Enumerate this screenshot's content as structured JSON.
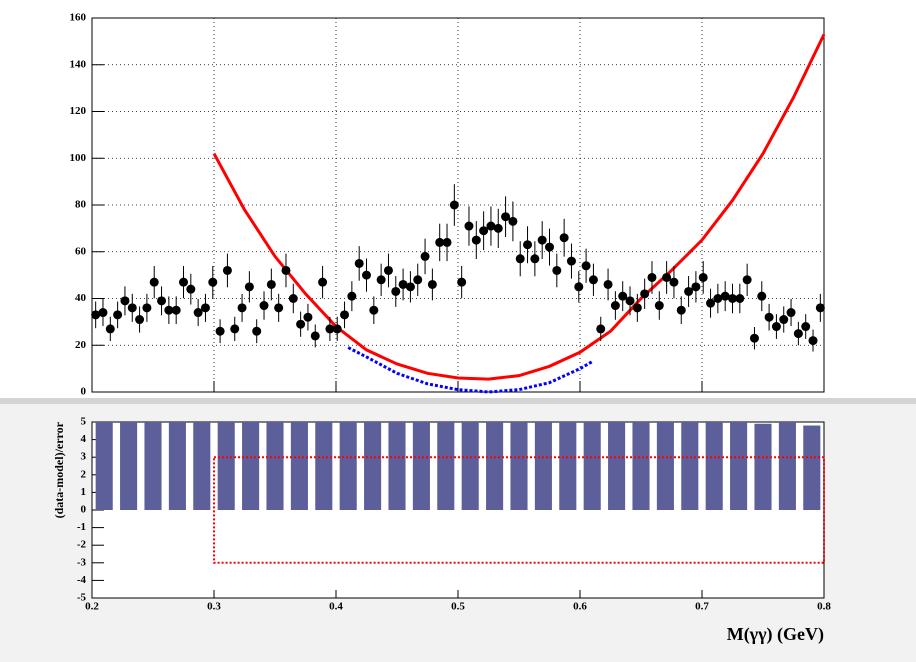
{
  "chart_data": [
    {
      "type": "scatter",
      "xlim": [
        0.2,
        0.8
      ],
      "ylim": [
        0,
        160
      ],
      "xticks": [
        0.2,
        0.3,
        0.4,
        0.5,
        0.6,
        0.7,
        0.8
      ],
      "yticks": [
        0,
        20,
        40,
        60,
        80,
        100,
        120,
        140,
        160
      ],
      "grid": true,
      "color": "#000000",
      "x": [
        0.203,
        0.209,
        0.215,
        0.221,
        0.227,
        0.233,
        0.239,
        0.245,
        0.251,
        0.257,
        0.263,
        0.269,
        0.275,
        0.281,
        0.287,
        0.293,
        0.299,
        0.305,
        0.311,
        0.317,
        0.323,
        0.329,
        0.335,
        0.341,
        0.347,
        0.353,
        0.359,
        0.365,
        0.371,
        0.377,
        0.383,
        0.389,
        0.395,
        0.401,
        0.407,
        0.413,
        0.419,
        0.425,
        0.431,
        0.437,
        0.443,
        0.449,
        0.455,
        0.461,
        0.467,
        0.473,
        0.479,
        0.485,
        0.491,
        0.497,
        0.503,
        0.509,
        0.515,
        0.521,
        0.527,
        0.533,
        0.539,
        0.545,
        0.551,
        0.557,
        0.563,
        0.569,
        0.575,
        0.581,
        0.587,
        0.593,
        0.599,
        0.605,
        0.611,
        0.617,
        0.623,
        0.629,
        0.635,
        0.641,
        0.647,
        0.653,
        0.659,
        0.665,
        0.671,
        0.677,
        0.683,
        0.689,
        0.695,
        0.701,
        0.707,
        0.713,
        0.719,
        0.725,
        0.731,
        0.737,
        0.743,
        0.749,
        0.755,
        0.761,
        0.767,
        0.773,
        0.779,
        0.785,
        0.791,
        0.797
      ],
      "values": [
        33,
        34,
        27,
        33,
        39,
        36,
        31,
        36,
        47,
        39,
        35,
        35,
        47,
        44,
        34,
        36,
        47,
        26,
        52,
        27,
        36,
        45,
        26,
        37,
        46,
        36,
        52,
        40,
        29,
        32,
        24,
        47,
        27,
        27,
        33,
        41,
        55,
        50,
        35,
        48,
        52,
        43,
        46,
        45,
        48,
        58,
        46,
        64,
        64,
        80,
        47,
        71,
        65,
        69,
        71,
        70,
        75,
        73,
        57,
        63,
        57,
        65,
        62,
        52,
        66,
        56,
        45,
        54,
        48,
        27,
        46,
        37,
        41,
        39,
        36,
        42,
        49,
        37,
        49,
        47,
        35,
        43,
        45,
        49,
        38,
        40,
        41,
        40,
        40,
        48,
        23,
        41,
        32,
        28,
        31,
        34,
        25,
        28,
        22,
        36
      ],
      "errors": [
        5.7,
        5.8,
        5.2,
        5.7,
        6.2,
        6,
        5.6,
        6,
        6.9,
        6.2,
        5.9,
        5.9,
        6.9,
        6.6,
        5.8,
        6,
        6.9,
        5.1,
        7.2,
        5.2,
        6,
        6.7,
        5.1,
        6.1,
        6.8,
        6,
        7.2,
        6.3,
        5.4,
        5.7,
        4.9,
        6.9,
        5.2,
        5.2,
        5.7,
        6.4,
        7.4,
        7.1,
        5.9,
        6.9,
        7.2,
        6.6,
        6.8,
        6.7,
        6.9,
        7.6,
        6.8,
        8,
        8,
        8.9,
        6.9,
        8.4,
        8.1,
        8.3,
        8.4,
        8.4,
        8.7,
        8.5,
        7.5,
        7.9,
        7.5,
        8.1,
        7.9,
        7.2,
        8.1,
        7.5,
        6.7,
        7.3,
        6.9,
        5.2,
        6.8,
        6.1,
        6.4,
        6.2,
        6,
        6.5,
        7,
        6.1,
        7,
        6.9,
        5.9,
        6.6,
        6.7,
        7,
        6.2,
        6.3,
        6.4,
        6.3,
        6.3,
        6.9,
        4.8,
        6.4,
        5.7,
        5.3,
        5.6,
        5.8,
        5,
        5.3,
        4.7,
        6
      ],
      "lines": [
        {
          "color": "#ff0000",
          "dashed": false,
          "x": [
            0.3,
            0.325,
            0.35,
            0.375,
            0.4,
            0.425,
            0.45,
            0.475,
            0.5,
            0.525,
            0.55,
            0.575,
            0.6,
            0.625,
            0.65,
            0.675,
            0.7,
            0.725,
            0.75,
            0.775,
            0.8
          ],
          "values": [
            102,
            78,
            58,
            42,
            28,
            18,
            12,
            8,
            6,
            5.5,
            7,
            11,
            17,
            26,
            40,
            52,
            65,
            82,
            102,
            126,
            153
          ]
        },
        {
          "color": "#0000ff",
          "dashed": true,
          "x": [
            0.41,
            0.425,
            0.45,
            0.475,
            0.5,
            0.525,
            0.55,
            0.575,
            0.6,
            0.61
          ],
          "values": [
            19,
            15,
            8,
            3.5,
            1,
            0,
            1,
            4,
            10,
            13
          ]
        }
      ]
    },
    {
      "type": "bar",
      "x_label": "M(γγ) (GeV)",
      "y_label": "(data-model)/error",
      "xlim": [
        0.2,
        0.8
      ],
      "ylim": [
        -5,
        5
      ],
      "xticks": [
        0.2,
        0.3,
        0.4,
        0.5,
        0.6,
        0.7,
        0.8
      ],
      "yticks": [
        -5,
        -4,
        -3,
        -2,
        -1,
        0,
        1,
        2,
        3,
        4,
        5
      ],
      "color": "#5c5f99",
      "x": [
        0.21,
        0.23,
        0.25,
        0.27,
        0.29,
        0.31,
        0.33,
        0.35,
        0.37,
        0.39,
        0.41,
        0.43,
        0.45,
        0.47,
        0.49,
        0.51,
        0.53,
        0.55,
        0.57,
        0.59,
        0.61,
        0.63,
        0.65,
        0.67,
        0.69,
        0.71,
        0.73,
        0.75,
        0.77,
        0.79
      ],
      "values": [
        5,
        5,
        5,
        5,
        5,
        5,
        5,
        5,
        5,
        5,
        5,
        5,
        5,
        5,
        5,
        5,
        5,
        5,
        5,
        5,
        5,
        5,
        5,
        5,
        5,
        5,
        5,
        4.9,
        5,
        4.8
      ],
      "band": {
        "color": "#ff0000",
        "x": [
          0.3,
          0.8
        ],
        "y": [
          -3,
          3
        ]
      }
    }
  ]
}
